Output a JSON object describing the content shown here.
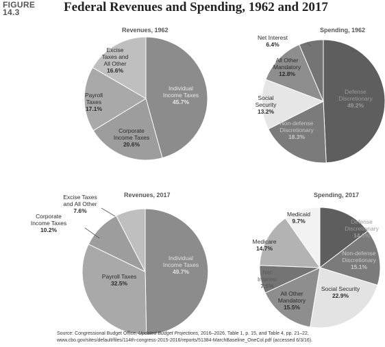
{
  "figure_label_1": "FIGURE",
  "figure_label_2": "14.3",
  "title": "Federal Revenues and Spending, 1962 and 2017",
  "source": {
    "prefix": "Source: Congressional Budget Office,",
    "italic": "Updated Budget Projections,",
    "rest": " 2016–2026, Table 1, p. 15, and Table 4, pp. 21–22, www.cbo.gov/sites/default/files/114th-congress-2015-2016/reports/51384-MarchBaseline_OneCol.pdf (accessed 6/3/16)."
  },
  "chart_data": [
    {
      "type": "pie",
      "title": "Revenues, 1962",
      "slices": [
        {
          "name": "Individual Income Taxes",
          "value": 45.7,
          "label_lines": [
            "Individual",
            "Income Taxes"
          ],
          "pct": "45.7%",
          "color": "#8c8c8c",
          "text_color": "#e8e8e8"
        },
        {
          "name": "Corporate Income Taxes",
          "value": 20.6,
          "label_lines": [
            "Corporate",
            "Income Taxes"
          ],
          "pct": "20.6%",
          "color": "#9d9d9d",
          "text_color": "#2b2b2b"
        },
        {
          "name": "Payroll Taxes",
          "value": 17.1,
          "label_lines": [
            "Payroll",
            "Taxes"
          ],
          "pct": "17.1%",
          "color": "#a9a9a9",
          "text_color": "#2b2b2b"
        },
        {
          "name": "Excise Taxes and All Other",
          "value": 16.6,
          "label_lines": [
            "Excise",
            "Taxes and",
            "All Other"
          ],
          "pct": "16.6%",
          "color": "#bfbfbf",
          "text_color": "#2b2b2b"
        }
      ]
    },
    {
      "type": "pie",
      "title": "Spending, 1962",
      "slices": [
        {
          "name": "Defense Discretionary",
          "value": 49.2,
          "label_lines": [
            "Defense",
            "Discretionary"
          ],
          "pct": "49.2%",
          "color": "#5e5e5e",
          "text_color": "#9a9a9a"
        },
        {
          "name": "Non-defense Discretionary",
          "value": 18.3,
          "label_lines": [
            "Non-defense",
            "Discretionary"
          ],
          "pct": "18.3%",
          "color": "#7b7b7b",
          "text_color": "#c8c8c8"
        },
        {
          "name": "Social Security",
          "value": 13.2,
          "label_lines": [
            "Social",
            "Security"
          ],
          "pct": "13.2%",
          "color": "#e6e6e6",
          "text_color": "#2b2b2b"
        },
        {
          "name": "All Other Mandatory",
          "value": 12.8,
          "label_lines": [
            "All Other",
            "Mandatory"
          ],
          "pct": "12.8%",
          "color": "#8e8e8e",
          "text_color": "#2b2b2b"
        },
        {
          "name": "Net Interest",
          "value": 6.4,
          "label_lines": [
            "Net Interest"
          ],
          "pct": "6.4%",
          "color": "#747474",
          "text_color": "#2b2b2b"
        }
      ]
    },
    {
      "type": "pie",
      "title": "Revenues, 2017",
      "slices": [
        {
          "name": "Individual Income Taxes",
          "value": 49.7,
          "label_lines": [
            "Individual",
            "Income Taxes"
          ],
          "pct": "49.7%",
          "color": "#8c8c8c",
          "text_color": "#e0e0e0"
        },
        {
          "name": "Payroll Taxes",
          "value": 32.5,
          "label_lines": [
            "Payroll Taxes"
          ],
          "pct": "32.5%",
          "color": "#a9a9a9",
          "text_color": "#2b2b2b"
        },
        {
          "name": "Corporate Income Taxes",
          "value": 10.2,
          "label_lines": [
            "Corporate",
            "Income Taxes"
          ],
          "pct": "10.2%",
          "color": "#9d9d9d",
          "text_color": "#2b2b2b"
        },
        {
          "name": "Excise Taxes and All Other",
          "value": 7.6,
          "label_lines": [
            "Excise Taxes",
            "and All Other"
          ],
          "pct": "7.6%",
          "color": "#bfbfbf",
          "text_color": "#2b2b2b"
        }
      ]
    },
    {
      "type": "pie",
      "title": "Spending, 2017",
      "slices": [
        {
          "name": "Defense Discretionary",
          "value": 14.6,
          "label_lines": [
            "Defense",
            "Discretionary"
          ],
          "pct": "14.6%",
          "color": "#5e5e5e",
          "text_color": "#9a9a9a"
        },
        {
          "name": "Non-defense Discretionary",
          "value": 15.1,
          "label_lines": [
            "Non-defense",
            "Discretionary"
          ],
          "pct": "15.1%",
          "color": "#7b7b7b",
          "text_color": "#c8c8c8"
        },
        {
          "name": "Social Security",
          "value": 22.9,
          "label_lines": [
            "Social Security"
          ],
          "pct": "22.9%",
          "color": "#e3e3e3",
          "text_color": "#2b2b2b"
        },
        {
          "name": "All Other Mandatory",
          "value": 15.5,
          "label_lines": [
            "All Other",
            "Mandatory"
          ],
          "pct": "15.5%",
          "color": "#8e8e8e",
          "text_color": "#2b2b2b"
        },
        {
          "name": "Net Interest",
          "value": 7.5,
          "label_lines": [
            "Net",
            "Interest"
          ],
          "pct": "7.5%",
          "color": "#747474",
          "text_color": "#5a5a5a"
        },
        {
          "name": "Medicare",
          "value": 14.7,
          "label_lines": [
            "Medicare"
          ],
          "pct": "14.7%",
          "color": "#b3b3b3",
          "text_color": "#2b2b2b"
        },
        {
          "name": "Medicaid",
          "value": 9.7,
          "label_lines": [
            "Medicaid"
          ],
          "pct": "9.7%",
          "color": "#f2f2f2",
          "text_color": "#2b2b2b"
        }
      ]
    }
  ]
}
